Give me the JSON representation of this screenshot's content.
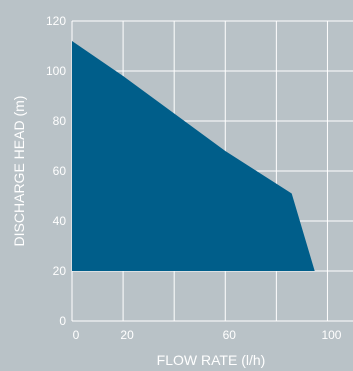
{
  "chart_data": {
    "type": "area",
    "title": "",
    "xlabel": "FLOW RATE (l/h)",
    "ylabel": "DISCHARGE HEAD (m)",
    "xlim": [
      0,
      110
    ],
    "ylim": [
      0,
      120
    ],
    "x_ticks": [
      0,
      20,
      60,
      100
    ],
    "y_ticks": [
      0,
      20,
      40,
      60,
      80,
      100,
      120
    ],
    "grid": true,
    "series": [
      {
        "points": [
          {
            "x": 0,
            "y": 112
          },
          {
            "x": 20,
            "y": 98
          },
          {
            "x": 40,
            "y": 83
          },
          {
            "x": 60,
            "y": 68
          },
          {
            "x": 86,
            "y": 51
          },
          {
            "x": 95,
            "y": 20
          },
          {
            "x": 0,
            "y": 20
          }
        ]
      }
    ],
    "colors": {
      "background": "#B9C2C7",
      "fill": "#005E8A",
      "grid": "#FFFFFF",
      "text": "#FFFFFF"
    }
  }
}
